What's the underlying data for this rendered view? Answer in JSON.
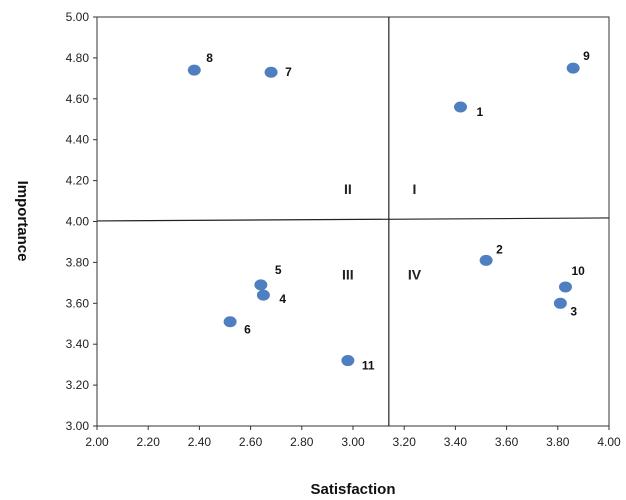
{
  "chart_data": {
    "type": "scatter",
    "xlabel": "Satisfaction",
    "ylabel": "Importance",
    "xlim": [
      2.0,
      4.0
    ],
    "ylim": [
      3.0,
      5.0
    ],
    "x_ticks": [
      "2.00",
      "2.20",
      "2.40",
      "2.60",
      "2.80",
      "3.00",
      "3.20",
      "3.40",
      "3.60",
      "3.80",
      "4.00"
    ],
    "y_ticks": [
      "3.00",
      "3.20",
      "3.40",
      "3.60",
      "3.80",
      "4.00",
      "4.20",
      "4.40",
      "4.60",
      "4.80",
      "5.00"
    ],
    "grid": false,
    "point_color": "#4f7fc0",
    "divider_x": 3.14,
    "divider_y": 4.01,
    "quadrants": [
      {
        "label": "I",
        "x": 3.24,
        "y": 4.16
      },
      {
        "label": "II",
        "x": 2.98,
        "y": 4.16
      },
      {
        "label": "III",
        "x": 2.98,
        "y": 3.74
      },
      {
        "label": "IV",
        "x": 3.24,
        "y": 3.74
      }
    ],
    "points": [
      {
        "label": "1",
        "x": 3.42,
        "y": 4.56
      },
      {
        "label": "2",
        "x": 3.52,
        "y": 3.81
      },
      {
        "label": "3",
        "x": 3.81,
        "y": 3.6
      },
      {
        "label": "4",
        "x": 2.65,
        "y": 3.64
      },
      {
        "label": "5",
        "x": 2.64,
        "y": 3.69
      },
      {
        "label": "6",
        "x": 2.52,
        "y": 3.51
      },
      {
        "label": "7",
        "x": 2.68,
        "y": 4.73
      },
      {
        "label": "8",
        "x": 2.38,
        "y": 4.74
      },
      {
        "label": "9",
        "x": 3.86,
        "y": 4.75
      },
      {
        "label": "10",
        "x": 3.83,
        "y": 3.68
      },
      {
        "label": "11",
        "x": 2.98,
        "y": 3.32
      }
    ]
  }
}
